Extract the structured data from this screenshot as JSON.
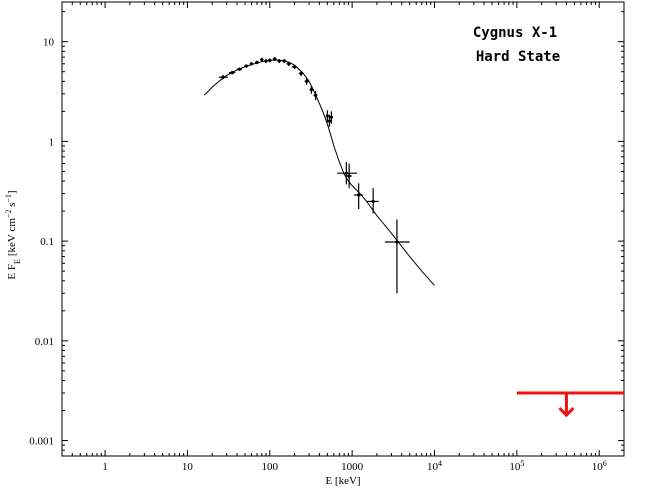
{
  "chart_data": {
    "type": "scatter",
    "title": "",
    "xlabel": "E [keV]",
    "ylabel": "E F_E [keV cm^-2 s^-1]",
    "ylabel_parts": {
      "main": "E F",
      "sub": "E",
      "units_pre": "[keV cm",
      "exp1": "−2",
      "units_mid": " s",
      "exp2": "−1",
      "units_post": "]"
    },
    "xscale": "log",
    "yscale": "log",
    "xlim": [
      0.3,
      2000000
    ],
    "ylim": [
      0.0007,
      25
    ],
    "grid": false,
    "x_ticks": [
      {
        "value": 1,
        "label": "1",
        "base": "1",
        "exp": ""
      },
      {
        "value": 10,
        "label": "10",
        "base": "10",
        "exp": ""
      },
      {
        "value": 100,
        "label": "100",
        "base": "100",
        "exp": ""
      },
      {
        "value": 1000,
        "label": "1000",
        "base": "1000",
        "exp": ""
      },
      {
        "value": 10000,
        "label": "10^4",
        "base": "10",
        "exp": "4"
      },
      {
        "value": 100000,
        "label": "10^5",
        "base": "10",
        "exp": "5"
      },
      {
        "value": 1000000,
        "label": "10^6",
        "base": "10",
        "exp": "6"
      }
    ],
    "y_ticks": [
      {
        "value": 10,
        "label": "10"
      },
      {
        "value": 1,
        "label": "1"
      },
      {
        "value": 0.1,
        "label": "0.1"
      },
      {
        "value": 0.01,
        "label": "0.01"
      },
      {
        "value": 0.001,
        "label": "0.001"
      }
    ],
    "annotations": [
      "Cygnus X-1",
      "Hard State"
    ],
    "model_curve": {
      "x": [
        16,
        20,
        25,
        30,
        40,
        50,
        60,
        70,
        80,
        100,
        120,
        150,
        180,
        200,
        250,
        300,
        350,
        400,
        450,
        500,
        550,
        600,
        700,
        800,
        900,
        1000,
        1200,
        1500,
        2000,
        3000,
        5000,
        7000,
        10000
      ],
      "y": [
        2.9,
        3.5,
        4.1,
        4.6,
        5.2,
        5.6,
        5.9,
        6.1,
        6.3,
        6.5,
        6.55,
        6.45,
        6.1,
        5.8,
        4.9,
        4.0,
        3.1,
        2.4,
        1.9,
        1.5,
        1.15,
        0.9,
        0.62,
        0.47,
        0.4,
        0.36,
        0.31,
        0.25,
        0.18,
        0.12,
        0.07,
        0.05,
        0.036
      ]
    },
    "series": [
      {
        "points": [
          {
            "x": 27,
            "y": 4.4,
            "xlo": 24,
            "xhi": 31,
            "ylo": 4.2,
            "yhi": 4.65
          },
          {
            "x": 35,
            "y": 4.9,
            "xlo": 32,
            "xhi": 38,
            "ylo": 4.7,
            "yhi": 5.1
          },
          {
            "x": 43,
            "y": 5.3,
            "xlo": 40,
            "xhi": 46,
            "ylo": 5.1,
            "yhi": 5.5
          },
          {
            "x": 52,
            "y": 5.7,
            "xlo": 49,
            "xhi": 55,
            "ylo": 5.5,
            "yhi": 5.9
          },
          {
            "x": 60,
            "y": 6.0,
            "xlo": 57,
            "xhi": 63,
            "ylo": 5.8,
            "yhi": 6.2
          },
          {
            "x": 70,
            "y": 6.2,
            "xlo": 66,
            "xhi": 74,
            "ylo": 5.95,
            "yhi": 6.45
          },
          {
            "x": 80,
            "y": 6.6,
            "xlo": 76,
            "xhi": 84,
            "ylo": 6.3,
            "yhi": 6.9
          },
          {
            "x": 90,
            "y": 6.4,
            "xlo": 86,
            "xhi": 94,
            "ylo": 6.1,
            "yhi": 6.7
          },
          {
            "x": 100,
            "y": 6.5,
            "xlo": 95,
            "xhi": 105,
            "ylo": 6.2,
            "yhi": 6.8
          },
          {
            "x": 115,
            "y": 6.7,
            "xlo": 109,
            "xhi": 121,
            "ylo": 6.4,
            "yhi": 7.0
          },
          {
            "x": 130,
            "y": 6.4,
            "xlo": 124,
            "xhi": 137,
            "ylo": 6.1,
            "yhi": 6.7
          },
          {
            "x": 150,
            "y": 6.4,
            "xlo": 140,
            "xhi": 160,
            "ylo": 6.1,
            "yhi": 6.7
          },
          {
            "x": 170,
            "y": 6.0,
            "xlo": 160,
            "xhi": 180,
            "ylo": 5.7,
            "yhi": 6.3
          },
          {
            "x": 200,
            "y": 5.6,
            "xlo": 185,
            "xhi": 215,
            "ylo": 5.3,
            "yhi": 5.9
          },
          {
            "x": 240,
            "y": 4.8,
            "xlo": 225,
            "xhi": 255,
            "ylo": 4.5,
            "yhi": 5.1
          },
          {
            "x": 280,
            "y": 4.0,
            "xlo": 265,
            "xhi": 295,
            "ylo": 3.7,
            "yhi": 4.3
          },
          {
            "x": 320,
            "y": 3.3,
            "xlo": 305,
            "xhi": 335,
            "ylo": 3.0,
            "yhi": 3.6
          },
          {
            "x": 360,
            "y": 2.9,
            "xlo": 340,
            "xhi": 380,
            "ylo": 2.6,
            "yhi": 3.2
          },
          {
            "x": 500,
            "y": 1.8,
            "xlo": 480,
            "xhi": 520,
            "ylo": 1.55,
            "yhi": 2.05
          },
          {
            "x": 530,
            "y": 1.6,
            "xlo": 510,
            "xhi": 550,
            "ylo": 1.4,
            "yhi": 1.85
          },
          {
            "x": 560,
            "y": 1.75,
            "xlo": 540,
            "xhi": 580,
            "ylo": 1.5,
            "yhi": 2.0
          },
          {
            "x": 850,
            "y": 0.48,
            "xlo": 660,
            "xhi": 1150,
            "ylo": 0.37,
            "yhi": 0.62
          },
          {
            "x": 920,
            "y": 0.45,
            "xlo": 860,
            "xhi": 990,
            "ylo": 0.34,
            "yhi": 0.6
          },
          {
            "x": 1200,
            "y": 0.29,
            "xlo": 1050,
            "xhi": 1350,
            "ylo": 0.21,
            "yhi": 0.38
          },
          {
            "x": 1800,
            "y": 0.25,
            "xlo": 1500,
            "xhi": 2100,
            "ylo": 0.19,
            "yhi": 0.34
          },
          {
            "x": 3500,
            "y": 0.098,
            "xlo": 2500,
            "xhi": 5000,
            "ylo": 0.03,
            "yhi": 0.165
          }
        ]
      }
    ],
    "upper_limit": {
      "color": "#ee1111",
      "x_from": 100000,
      "x_to": 2000000,
      "y": 0.003,
      "arrow_x": 400000,
      "arrow_to": 0.0018
    }
  }
}
